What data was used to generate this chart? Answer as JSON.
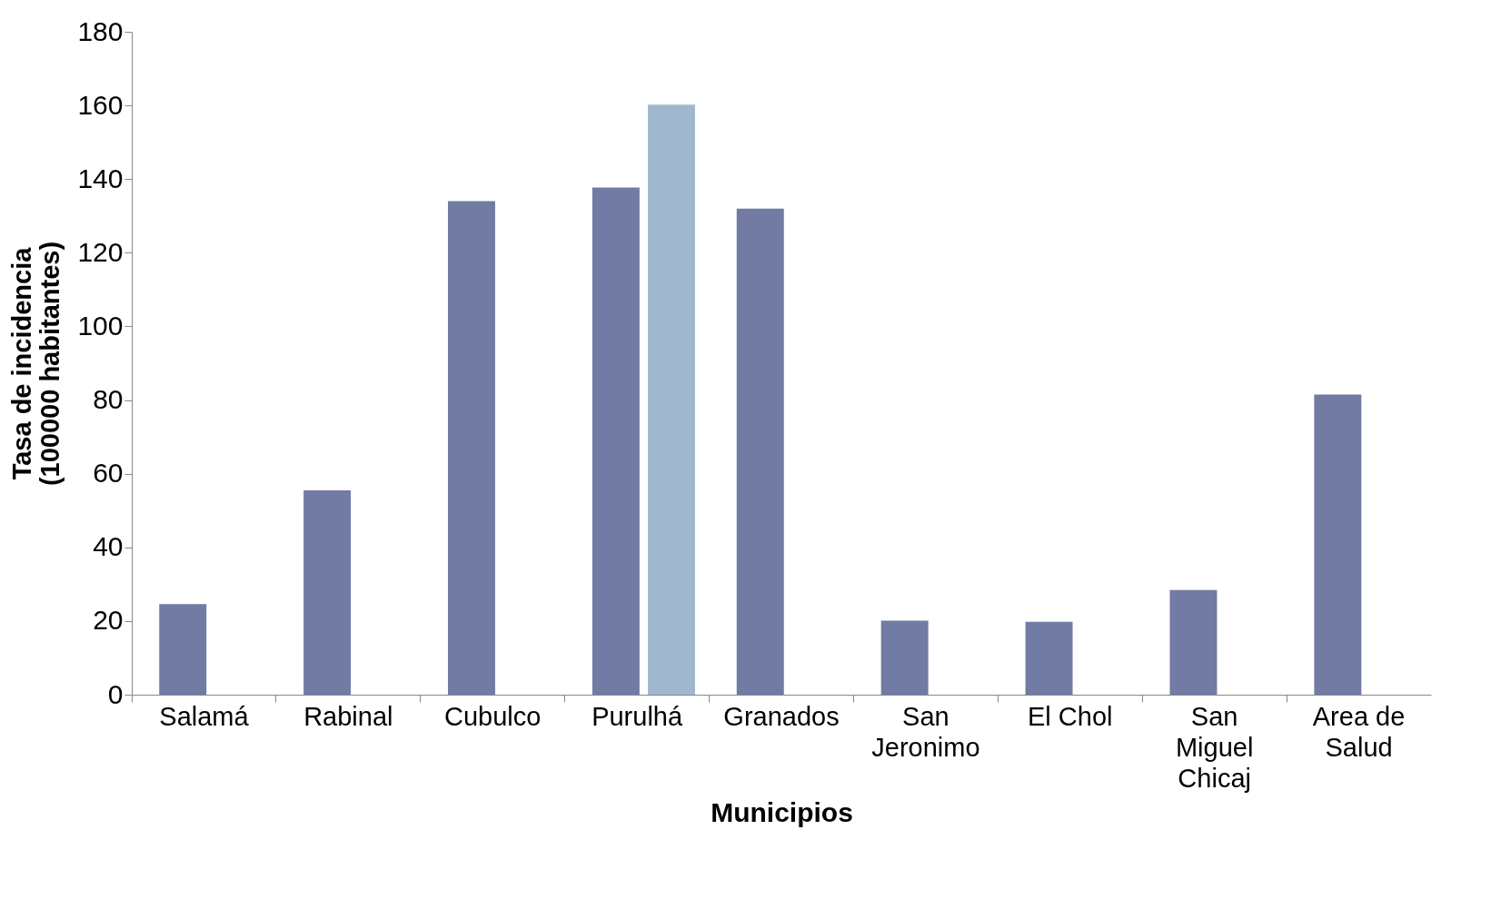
{
  "chart_data": {
    "type": "bar",
    "xlabel": "Municipios",
    "ylabel": "Tasa de incidencia\n(100000 habitantes)",
    "categories": [
      "Salamá",
      "Rabinal",
      "Cubulco",
      "Purulhá",
      "Granados",
      "San Jeronimo",
      "El Chol",
      "San Miguel Chicaj",
      "Area de Salud"
    ],
    "series": [
      {
        "color": "#717ba3",
        "values": [
          24.6,
          55.5,
          134,
          137.7,
          132,
          20.1,
          19.8,
          28.4,
          81.5
        ]
      },
      {
        "color": "#a0b8cf",
        "values": [
          null,
          null,
          null,
          160.2,
          null,
          null,
          null,
          null,
          null
        ]
      }
    ],
    "ylim": [
      0,
      180
    ],
    "yticks": [
      0,
      20,
      40,
      60,
      80,
      100,
      120,
      140,
      160,
      180
    ],
    "grid": false,
    "legend": false
  }
}
